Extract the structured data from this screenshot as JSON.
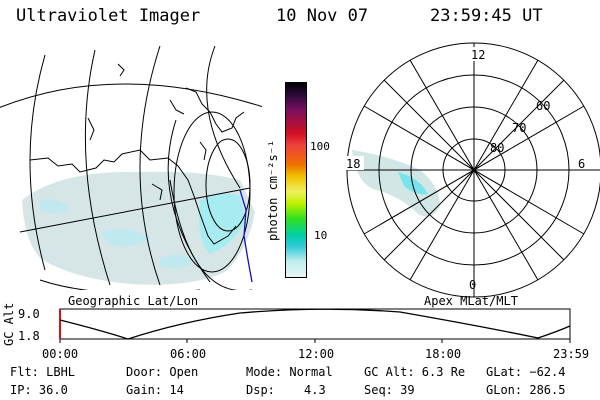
{
  "header": {
    "title": "Ultraviolet Imager",
    "date": "10 Nov 07",
    "time": "23:59:45 UT"
  },
  "colorbar": {
    "label": "photon cm⁻²s⁻¹",
    "ticks": [
      "100",
      "10"
    ]
  },
  "polar_plot": {
    "mlt_labels": [
      "12",
      "18",
      "6",
      "0"
    ],
    "mlat_labels": [
      "60",
      "70",
      "80"
    ]
  },
  "panel_labels": {
    "left": "Geographic Lat/Lon",
    "right": "Apex MLat/MLT"
  },
  "gc_alt_plot": {
    "ylabel": "GC Alt",
    "y_ticks": [
      "9.0",
      "1.8"
    ],
    "x_ticks": [
      "00:00",
      "06:00",
      "12:00",
      "18:00",
      "23:59"
    ]
  },
  "info": {
    "filter": "Flt: LBHL",
    "ip": "IP: 36.0",
    "door": "Door: Open",
    "gain": "Gain: 14",
    "mode": "Mode: Normal",
    "dsp_label": "Dsp:",
    "dsp_value": "4.3",
    "gc_alt": "GC Alt: 6.3 Re",
    "seq": "Seq: 39",
    "glat": "GLat: −62.4",
    "glon": "GLon: 286.5"
  },
  "colors": {
    "aurora_faint": "#cfe4e4",
    "aurora_cyan": "#9eecf0",
    "aurora_bright": "#5ce0e8",
    "coast_blue": "#1010c8"
  }
}
